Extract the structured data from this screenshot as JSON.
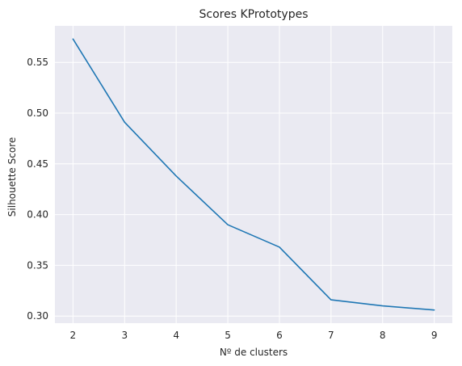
{
  "chart_data": {
    "type": "line",
    "title": "Scores KPrototypes",
    "xlabel": "Nº de clusters",
    "ylabel": "Silhouette Score",
    "x": [
      2,
      3,
      4,
      5,
      6,
      7,
      8,
      9
    ],
    "series": [
      {
        "values": [
          0.573,
          0.491,
          0.438,
          0.39,
          0.368,
          0.316,
          0.31,
          0.306
        ]
      }
    ],
    "xlim": [
      1.65,
      9.35
    ],
    "ylim": [
      0.293,
      0.586
    ],
    "xticks": [
      2,
      3,
      4,
      5,
      6,
      7,
      8,
      9
    ],
    "yticks": [
      0.3,
      0.35,
      0.4,
      0.45,
      0.5,
      0.55
    ],
    "ytick_labels": [
      "0.30",
      "0.35",
      "0.40",
      "0.45",
      "0.50",
      "0.55"
    ],
    "grid": true,
    "colors": {
      "background": "#eaeaf2",
      "grid": "#ffffff",
      "line": "#1f77b4"
    }
  }
}
